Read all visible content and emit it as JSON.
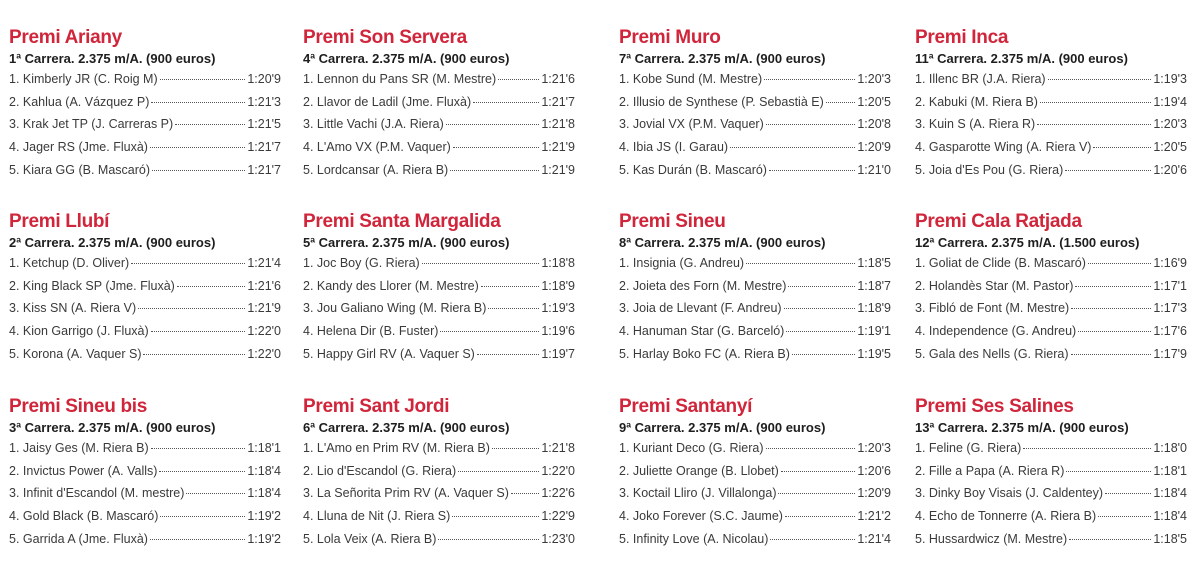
{
  "races": [
    {
      "title": "Premi Ariany",
      "subtitle": "1ª Carrera. 2.375 m/A. (900 euros)",
      "results": [
        {
          "name": "1. Kimberly JR (C. Roig M)",
          "time": "1:20'9"
        },
        {
          "name": "2. Kahlua (A. Vázquez P)",
          "time": "1:21'3"
        },
        {
          "name": "3. Krak Jet TP (J. Carreras P)",
          "time": "1:21'5"
        },
        {
          "name": "4. Jager RS (Jme. Fluxà)",
          "time": "1:21'7"
        },
        {
          "name": "5. Kiara GG (B. Mascaró)",
          "time": "1:21'7"
        }
      ]
    },
    {
      "title": "Premi Son Servera",
      "subtitle": "4ª Carrera. 2.375 m/A. (900 euros)",
      "results": [
        {
          "name": "1. Lennon du Pans SR (M. Mestre)",
          "time": "1:21'6"
        },
        {
          "name": "2. Llavor de Ladil (Jme. Fluxà)",
          "time": "1:21'7"
        },
        {
          "name": "3. Little Vachi (J.A. Riera)",
          "time": "1:21'8"
        },
        {
          "name": "4. L'Amo VX (P.M. Vaquer)",
          "time": "1:21'9"
        },
        {
          "name": "5. Lordcansar (A. Riera B)",
          "time": "1:21'9"
        }
      ]
    },
    {
      "title": "Premi Muro",
      "subtitle": "7ª Carrera. 2.375 m/A. (900 euros)",
      "results": [
        {
          "name": "1. Kobe Sund (M. Mestre)",
          "time": "1:20'3"
        },
        {
          "name": "2. Illusio de Synthese (P. Sebastià E)",
          "time": "1:20'5"
        },
        {
          "name": "3. Jovial VX (P.M. Vaquer)",
          "time": "1:20'8"
        },
        {
          "name": "4. Ibia JS (I. Garau)",
          "time": "1:20'9"
        },
        {
          "name": "5. Kas Durán (B. Mascaró)",
          "time": "1:21'0"
        }
      ]
    },
    {
      "title": "Premi Inca",
      "subtitle": "11ª Carrera. 2.375 m/A. (900 euros)",
      "results": [
        {
          "name": "1. Illenc BR (J.A. Riera)",
          "time": "1:19'3"
        },
        {
          "name": "2. Kabuki (M. Riera B)",
          "time": "1:19'4"
        },
        {
          "name": "3. Kuin S (A. Riera R)",
          "time": "1:20'3"
        },
        {
          "name": "4. Gasparotte Wing (A. Riera V)",
          "time": "1:20'5"
        },
        {
          "name": "5. Joia d'Es Pou (G. Riera)",
          "time": "1:20'6"
        }
      ]
    },
    {
      "title": "Premi Llubí",
      "subtitle": "2ª Carrera. 2.375 m/A. (900 euros)",
      "results": [
        {
          "name": "1. Ketchup (D. Oliver)",
          "time": "1:21'4"
        },
        {
          "name": "2. King Black SP (Jme. Fluxà)",
          "time": "1:21'6"
        },
        {
          "name": "3. Kiss SN (A. Riera V)",
          "time": "1:21'9"
        },
        {
          "name": "4. Kion Garrigo (J. Fluxà)",
          "time": "1:22'0"
        },
        {
          "name": "5. Korona (A. Vaquer S)",
          "time": "1:22'0"
        }
      ]
    },
    {
      "title": "Premi Santa Margalida",
      "subtitle": "5ª Carrera. 2.375 m/A. (900 euros)",
      "results": [
        {
          "name": "1. Joc Boy (G. Riera)",
          "time": "1:18'8"
        },
        {
          "name": "2. Kandy des Llorer (M. Mestre)",
          "time": "1:18'9"
        },
        {
          "name": "3. Jou Galiano Wing (M. Riera B)",
          "time": "1:19'3"
        },
        {
          "name": "4. Helena Dir (B. Fuster)",
          "time": "1:19'6"
        },
        {
          "name": "5. Happy Girl RV (A. Vaquer S)",
          "time": "1:19'7"
        }
      ]
    },
    {
      "title": "Premi Sineu",
      "subtitle": "8ª Carrera. 2.375 m/A. (900 euros)",
      "results": [
        {
          "name": "1. Insignia (G. Andreu)",
          "time": "1:18'5"
        },
        {
          "name": "2. Joieta des Forn (M. Mestre)",
          "time": "1:18'7"
        },
        {
          "name": "3. Joia de Llevant (F. Andreu)",
          "time": "1:18'9"
        },
        {
          "name": "4. Hanuman Star (G. Barceló)",
          "time": "1:19'1"
        },
        {
          "name": "5. Harlay Boko FC (A. Riera B)",
          "time": "1:19'5"
        }
      ]
    },
    {
      "title": "Premi Cala Ratjada",
      "subtitle": "12ª Carrera. 2.375 m/A. (1.500 euros)",
      "results": [
        {
          "name": "1. Goliat de Clide (B. Mascaró)",
          "time": "1:16'9"
        },
        {
          "name": "2. Holandès Star (M. Pastor)",
          "time": "1:17'1"
        },
        {
          "name": "3. Fibló de Font (M. Mestre)",
          "time": "1:17'3"
        },
        {
          "name": "4. Independence (G. Andreu)",
          "time": "1:17'6"
        },
        {
          "name": "5. Gala des Nells (G. Riera)",
          "time": "1:17'9"
        }
      ]
    },
    {
      "title": "Premi Sineu bis",
      "subtitle": "3ª Carrera. 2.375 m/A. (900 euros)",
      "results": [
        {
          "name": "1. Jaisy Ges (M. Riera B)",
          "time": "1:18'1"
        },
        {
          "name": "2. Invictus Power (A. Valls)",
          "time": "1:18'4"
        },
        {
          "name": "3. Infinit d'Escandol (M. mestre)",
          "time": "1:18'4"
        },
        {
          "name": "4. Gold Black (B. Mascaró)",
          "time": "1:19'2"
        },
        {
          "name": "5. Garrida A (Jme. Fluxà)",
          "time": "1:19'2"
        }
      ]
    },
    {
      "title": "Premi Sant Jordi",
      "subtitle": "6ª Carrera. 2.375 m/A. (900 euros)",
      "results": [
        {
          "name": "1. L'Amo en Prim RV (M. Riera B)",
          "time": "1:21'8"
        },
        {
          "name": "2. Lio d'Escandol (G. Riera)",
          "time": "1:22'0"
        },
        {
          "name": "3. La Señorita Prim RV (A. Vaquer S)",
          "time": "1:22'6"
        },
        {
          "name": "4. Lluna de Nit (J. Riera S)",
          "time": "1:22'9"
        },
        {
          "name": "5. Lola Veix (A. Riera B)",
          "time": "1:23'0"
        }
      ]
    },
    {
      "title": "Premi Santanyí",
      "subtitle": "9ª Carrera. 2.375 m/A. (900 euros)",
      "results": [
        {
          "name": "1. Kuriant Deco (G. Riera)",
          "time": "1:20'3"
        },
        {
          "name": "2. Juliette Orange (B. Llobet)",
          "time": "1:20'6"
        },
        {
          "name": "3. Koctail Lliro (J. Villalonga)",
          "time": "1:20'9"
        },
        {
          "name": "4. Joko Forever (S.C. Jaume)",
          "time": "1:21'2"
        },
        {
          "name": "5. Infinity Love (A. Nicolau)",
          "time": "1:21'4"
        }
      ]
    },
    {
      "title": "Premi Ses Salines",
      "subtitle": "13ª Carrera. 2.375 m/A. (900 euros)",
      "results": [
        {
          "name": "1. Feline (G. Riera)",
          "time": "1:18'0"
        },
        {
          "name": "2. Fille a Papa (A. Riera R)",
          "time": "1:18'1"
        },
        {
          "name": "3. Dinky Boy Visais (J. Caldentey)",
          "time": "1:18'4"
        },
        {
          "name": "4. Echo de Tonnerre (A. Riera B)",
          "time": "1:18'4"
        },
        {
          "name": "5. Hussardwicz (M. Mestre)",
          "time": "1:18'5"
        }
      ]
    }
  ],
  "colors": {
    "title": "#d0253a",
    "text": "#3a3a3a"
  }
}
